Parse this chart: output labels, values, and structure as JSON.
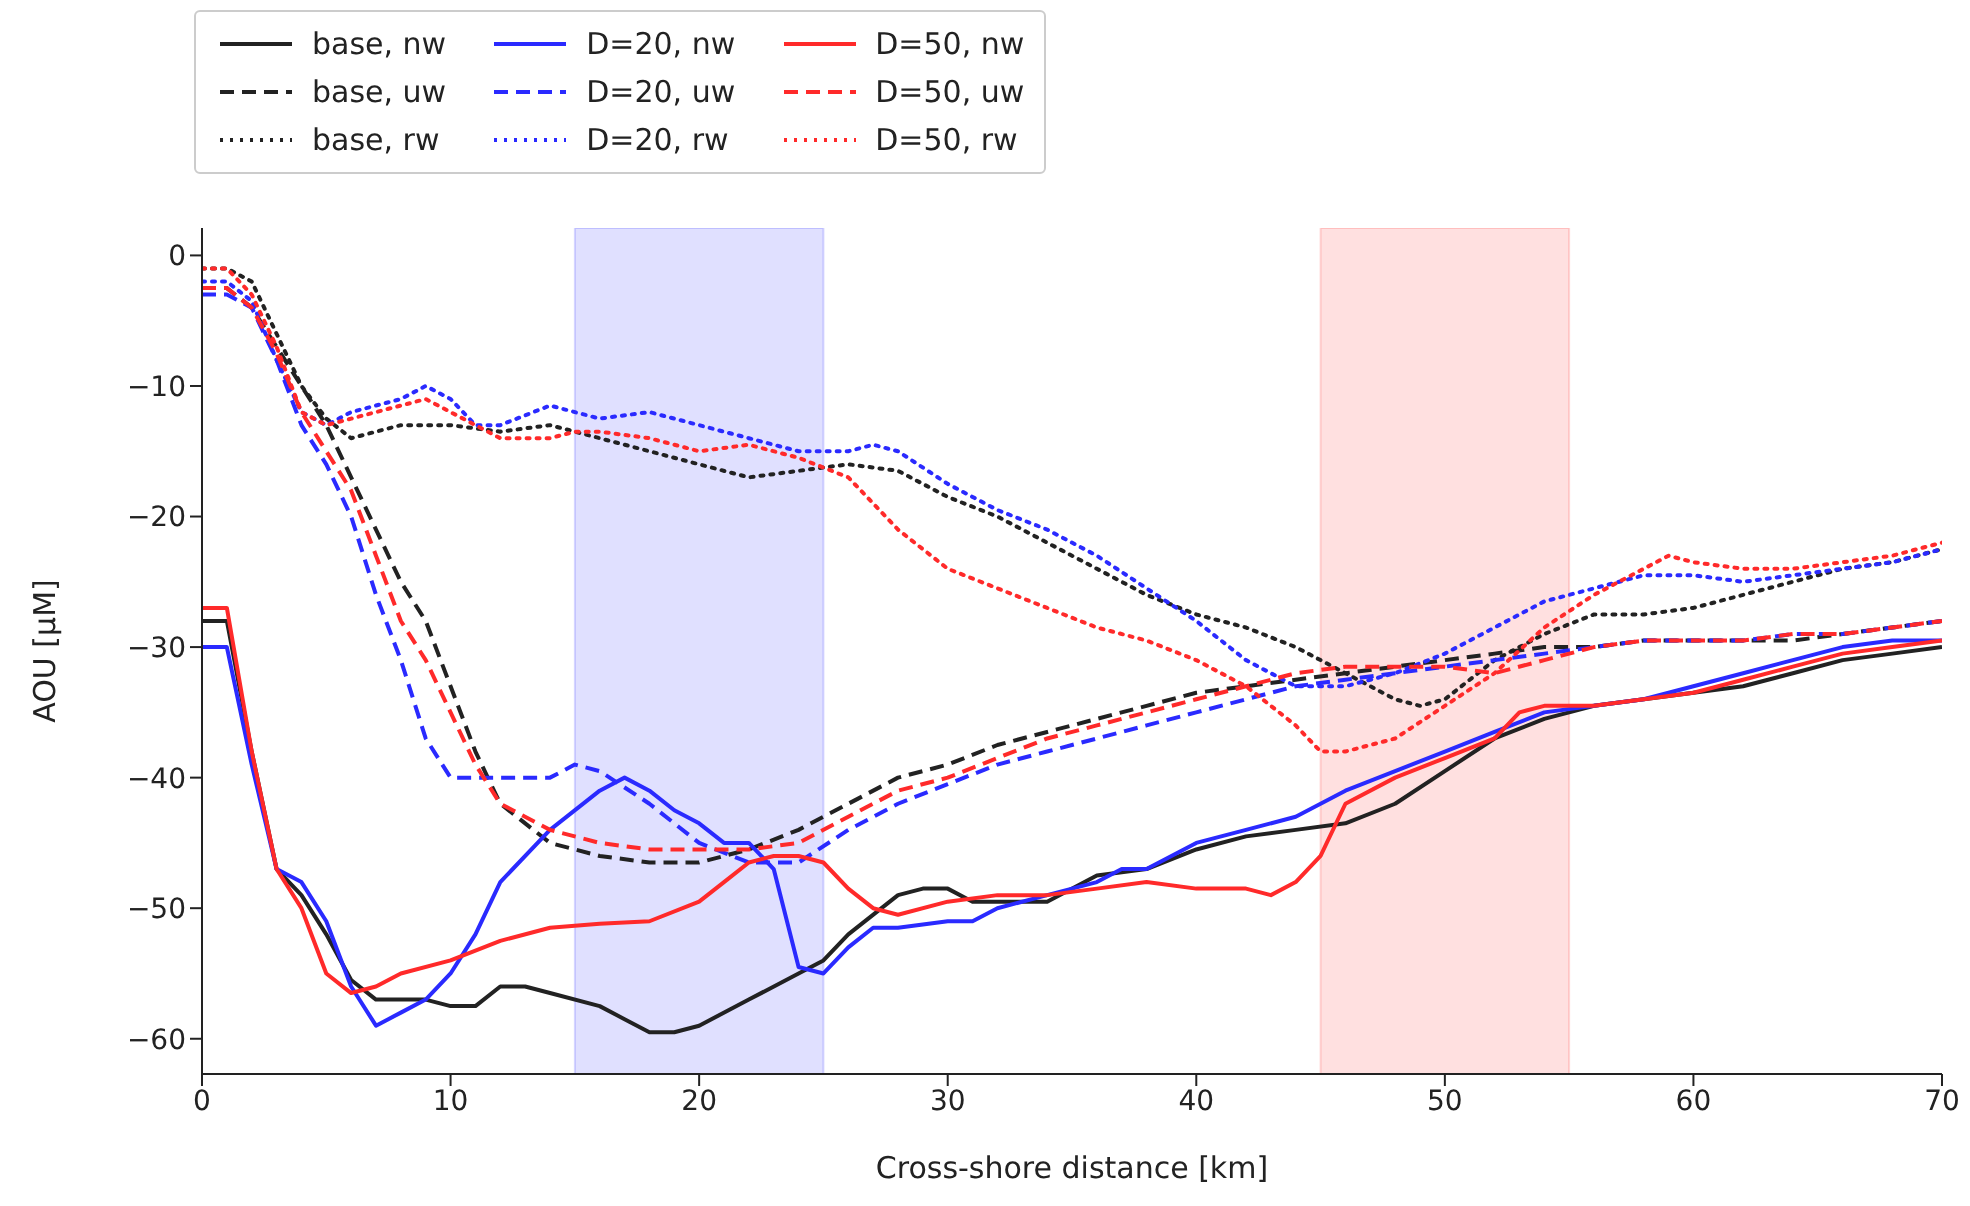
{
  "chart_data": {
    "type": "line",
    "xlabel": "Cross-shore distance [km]",
    "ylabel": "AOU [μM]",
    "xlim": [
      0,
      70
    ],
    "xticks": [
      0,
      10,
      20,
      30,
      40,
      50,
      60,
      70
    ],
    "ylim": [
      -62.7,
      2.1
    ],
    "yticks": [
      -60,
      -50,
      -40,
      -30,
      -20,
      -10,
      0
    ],
    "grid": false,
    "legend": "top",
    "marker": "none",
    "bands": [
      {
        "axis": "x",
        "from": 15,
        "to": 25,
        "color": "#0000ff"
      },
      {
        "axis": "x",
        "from": 45,
        "to": 55,
        "color": "#ff0000"
      }
    ],
    "series": [
      {
        "name": "base, nw",
        "color": "#222222",
        "line_style": "solid",
        "x": [
          0,
          1,
          2,
          3,
          4,
          5,
          6,
          7,
          8,
          9,
          10,
          11,
          12,
          13,
          14,
          16,
          17,
          18,
          19,
          20,
          22,
          24,
          25,
          26,
          28,
          29,
          30,
          31,
          32,
          34,
          36,
          38,
          40,
          42,
          44,
          46,
          48,
          50,
          52,
          54,
          56,
          58,
          60,
          62,
          64,
          66,
          68,
          70
        ],
        "values": [
          -28,
          -28,
          -38,
          -47,
          -49,
          -52,
          -55.5,
          -57,
          -57,
          -57,
          -57.5,
          -57.5,
          -56,
          -56,
          -56.5,
          -57.5,
          -58.5,
          -59.5,
          -59.5,
          -59,
          -57,
          -55,
          -54,
          -52,
          -49,
          -48.5,
          -48.5,
          -49.5,
          -49.5,
          -49.5,
          -47.5,
          -47,
          -45.5,
          -44.5,
          -44,
          -43.5,
          -42,
          -39.5,
          -37,
          -35.5,
          -34.5,
          -34,
          -33.5,
          -33,
          -32,
          -31,
          -30.5,
          -30
        ]
      },
      {
        "name": "base, uw",
        "color": "#222222",
        "line_style": "dashed",
        "x": [
          0,
          1,
          2,
          3,
          4,
          5,
          6,
          7,
          8,
          9,
          10,
          11,
          12,
          14,
          16,
          18,
          20,
          22,
          24,
          26,
          28,
          30,
          32,
          34,
          36,
          38,
          40,
          42,
          44,
          46,
          48,
          50,
          52,
          54,
          56,
          58,
          60,
          62,
          64,
          66,
          68,
          70
        ],
        "values": [
          -2.5,
          -2.5,
          -4,
          -7,
          -10,
          -13,
          -17,
          -21,
          -25,
          -28,
          -33,
          -38,
          -42,
          -45,
          -46,
          -46.5,
          -46.5,
          -45.5,
          -44,
          -42,
          -40,
          -39,
          -37.5,
          -36.5,
          -35.5,
          -34.5,
          -33.5,
          -33,
          -32.5,
          -32,
          -31.5,
          -31,
          -30.5,
          -30,
          -30,
          -29.5,
          -29.5,
          -29.5,
          -29.5,
          -29,
          -28.5,
          -28
        ]
      },
      {
        "name": "base, rw",
        "color": "#222222",
        "line_style": "dotted",
        "x": [
          0,
          1,
          2,
          3,
          4,
          5,
          6,
          8,
          10,
          12,
          14,
          16,
          18,
          20,
          22,
          24,
          26,
          28,
          30,
          32,
          34,
          36,
          38,
          40,
          42,
          44,
          46,
          48,
          49,
          50,
          52,
          54,
          56,
          58,
          60,
          62,
          64,
          66,
          68,
          70
        ],
        "values": [
          -1,
          -1,
          -2,
          -6,
          -10,
          -12.5,
          -14,
          -13,
          -13,
          -13.5,
          -13,
          -14,
          -15,
          -16,
          -17,
          -16.5,
          -16,
          -16.5,
          -18.5,
          -20,
          -22,
          -24,
          -26,
          -27.5,
          -28.5,
          -30,
          -32,
          -34,
          -34.5,
          -34,
          -31,
          -29,
          -27.5,
          -27.5,
          -27,
          -26,
          -25,
          -24,
          -23.5,
          -22.5
        ]
      },
      {
        "name": "D=20, nw",
        "color": "#2a2aff",
        "line_style": "solid",
        "x": [
          0,
          1,
          2,
          3,
          4,
          5,
          6,
          7,
          8,
          9,
          10,
          11,
          12,
          14,
          16,
          17,
          18,
          19,
          20,
          21,
          22,
          23,
          24,
          25,
          26,
          27,
          28,
          30,
          31,
          32,
          34,
          36,
          37,
          38,
          40,
          42,
          44,
          46,
          48,
          50,
          52,
          54,
          56,
          58,
          60,
          62,
          64,
          66,
          68,
          70
        ],
        "values": [
          -30,
          -30,
          -39,
          -47,
          -48,
          -51,
          -56,
          -59,
          -58,
          -57,
          -55,
          -52,
          -48,
          -44,
          -41,
          -40,
          -41,
          -42.5,
          -43.5,
          -45,
          -45,
          -47,
          -54.5,
          -55,
          -53,
          -51.5,
          -51.5,
          -51,
          -51,
          -50,
          -49,
          -48,
          -47,
          -47,
          -45,
          -44,
          -43,
          -41,
          -39.5,
          -38,
          -36.5,
          -35,
          -34.5,
          -34,
          -33,
          -32,
          -31,
          -30,
          -29.5,
          -29.5
        ]
      },
      {
        "name": "D=20, uw",
        "color": "#2a2aff",
        "line_style": "dashed",
        "x": [
          0,
          1,
          2,
          3,
          4,
          5,
          6,
          7,
          8,
          9,
          10,
          11,
          12,
          14,
          15,
          16,
          18,
          20,
          22,
          24,
          26,
          28,
          30,
          32,
          34,
          36,
          38,
          40,
          42,
          44,
          46,
          48,
          50,
          52,
          54,
          56,
          58,
          60,
          62,
          64,
          66,
          68,
          70
        ],
        "values": [
          -3,
          -3,
          -4,
          -8,
          -13,
          -16,
          -20,
          -26,
          -31,
          -37,
          -40,
          -40,
          -40,
          -40,
          -39,
          -39.5,
          -42,
          -45,
          -46.5,
          -46.5,
          -44,
          -42,
          -40.5,
          -39,
          -38,
          -37,
          -36,
          -35,
          -34,
          -33,
          -32.5,
          -32,
          -31.5,
          -31,
          -30.5,
          -30,
          -29.5,
          -29.5,
          -29.5,
          -29,
          -29,
          -28.5,
          -28
        ]
      },
      {
        "name": "D=20, rw",
        "color": "#2a2aff",
        "line_style": "dotted",
        "x": [
          0,
          1,
          2,
          3,
          4,
          5,
          6,
          8,
          9,
          10,
          11,
          12,
          14,
          16,
          18,
          20,
          22,
          24,
          26,
          27,
          28,
          30,
          32,
          34,
          36,
          38,
          40,
          42,
          44,
          46,
          48,
          50,
          52,
          54,
          56,
          58,
          60,
          62,
          64,
          66,
          68,
          70
        ],
        "values": [
          -2,
          -2,
          -3.5,
          -8,
          -12,
          -13,
          -12,
          -11,
          -10,
          -11,
          -13,
          -13,
          -11.5,
          -12.5,
          -12,
          -13,
          -14,
          -15,
          -15,
          -14.5,
          -15,
          -17.5,
          -19.5,
          -21,
          -23,
          -25.5,
          -28,
          -31,
          -33,
          -33,
          -32,
          -30.5,
          -28.5,
          -26.5,
          -25.5,
          -24.5,
          -24.5,
          -25,
          -24.5,
          -24,
          -23.5,
          -22.5
        ]
      },
      {
        "name": "D=50, nw",
        "color": "#ff2a2a",
        "line_style": "solid",
        "x": [
          0,
          1,
          2,
          3,
          4,
          5,
          6,
          7,
          8,
          10,
          12,
          14,
          16,
          18,
          20,
          21,
          22,
          23,
          24,
          25,
          26,
          27,
          28,
          30,
          32,
          34,
          36,
          38,
          40,
          42,
          43,
          44,
          45,
          46,
          48,
          50,
          52,
          53,
          54,
          56,
          58,
          60,
          62,
          64,
          66,
          68,
          70
        ],
        "values": [
          -27,
          -27,
          -38,
          -47,
          -50,
          -55,
          -56.5,
          -56,
          -55,
          -54,
          -52.5,
          -51.5,
          -51.2,
          -51,
          -49.5,
          -48,
          -46.5,
          -46,
          -46,
          -46.5,
          -48.5,
          -50,
          -50.5,
          -49.5,
          -49,
          -49,
          -48.5,
          -48,
          -48.5,
          -48.5,
          -49,
          -48,
          -46,
          -42,
          -40,
          -38.5,
          -37,
          -35,
          -34.5,
          -34.5,
          -34,
          -33.5,
          -32.5,
          -31.5,
          -30.5,
          -30,
          -29.5
        ]
      },
      {
        "name": "D=50, uw",
        "color": "#ff2a2a",
        "line_style": "dashed",
        "x": [
          0,
          1,
          2,
          3,
          4,
          5,
          6,
          7,
          8,
          9,
          10,
          11,
          12,
          14,
          16,
          18,
          20,
          22,
          24,
          26,
          28,
          30,
          32,
          34,
          36,
          38,
          40,
          42,
          44,
          46,
          48,
          50,
          52,
          54,
          56,
          58,
          60,
          62,
          64,
          66,
          68,
          70
        ],
        "values": [
          -2.5,
          -2.5,
          -4,
          -7.5,
          -12,
          -15,
          -18,
          -23,
          -28,
          -31,
          -35,
          -39,
          -42,
          -44,
          -45,
          -45.5,
          -45.5,
          -45.5,
          -45,
          -43,
          -41,
          -40,
          -38.5,
          -37,
          -36,
          -35,
          -34,
          -33,
          -32,
          -31.5,
          -31.5,
          -31.5,
          -32,
          -31,
          -30,
          -29.5,
          -29.5,
          -29.5,
          -29,
          -29,
          -28.5,
          -28
        ]
      },
      {
        "name": "D=50, rw",
        "color": "#ff2a2a",
        "line_style": "dotted",
        "x": [
          0,
          1,
          2,
          3,
          4,
          5,
          6,
          8,
          9,
          10,
          12,
          14,
          15,
          16,
          18,
          20,
          22,
          24,
          26,
          28,
          30,
          32,
          34,
          36,
          38,
          40,
          42,
          44,
          45,
          46,
          48,
          50,
          52,
          54,
          56,
          58,
          59,
          60,
          62,
          64,
          66,
          68,
          70
        ],
        "values": [
          -1,
          -1,
          -3,
          -7,
          -12,
          -13,
          -12.5,
          -11.5,
          -11,
          -12,
          -14,
          -14,
          -13.5,
          -13.5,
          -14,
          -15,
          -14.5,
          -15.5,
          -17,
          -21,
          -24,
          -25.5,
          -27,
          -28.5,
          -29.5,
          -31,
          -33,
          -36,
          -38,
          -38,
          -37,
          -34.5,
          -32,
          -28.5,
          -26,
          -24,
          -23,
          -23.5,
          -24,
          -24,
          -23.5,
          -23,
          -22
        ]
      }
    ]
  }
}
